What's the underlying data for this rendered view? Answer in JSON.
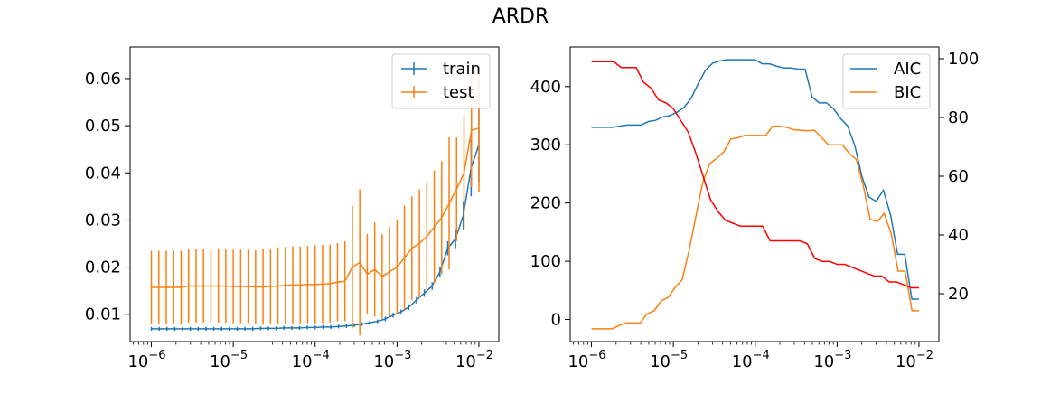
{
  "figure": {
    "title": "ARDR"
  },
  "colors": {
    "train": "#1f77b4",
    "test": "#ff7f0e",
    "aic": "#1f77b4",
    "bic": "#ff7f0e",
    "third": "#ff0000"
  },
  "chart_data": [
    {
      "type": "line",
      "subtype": "errorbar",
      "xscale": "log",
      "xlim": [
        5.5e-07,
        0.0175
      ],
      "ylim": [
        0.0042,
        0.0667
      ],
      "x_ticks": [
        {
          "value": 1e-06,
          "label": "−6"
        },
        {
          "value": 1e-05,
          "label": "−5"
        },
        {
          "value": 0.0001,
          "label": "−4"
        },
        {
          "value": 0.001,
          "label": "−3"
        },
        {
          "value": 0.01,
          "label": "−2"
        }
      ],
      "x_tick_base": "10",
      "y_ticks": [
        "0.01",
        "0.02",
        "0.03",
        "0.04",
        "0.05",
        "0.06"
      ],
      "legend": {
        "position": "upper right"
      },
      "series": [
        {
          "name": "train",
          "y": [
            0.0069,
            0.0069,
            0.0069,
            0.0069,
            0.0069,
            0.0069,
            0.0069,
            0.0069,
            0.0069,
            0.0069,
            0.0069,
            0.0069,
            0.0069,
            0.0069,
            0.007,
            0.007,
            0.007,
            0.0071,
            0.0071,
            0.0071,
            0.0072,
            0.0072,
            0.0073,
            0.0073,
            0.0074,
            0.0075,
            0.0077,
            0.0079,
            0.0082,
            0.0085,
            0.009,
            0.0098,
            0.0105,
            0.0115,
            0.013,
            0.0145,
            0.016,
            0.019,
            0.024,
            0.026,
            0.031,
            0.041,
            0.046
          ],
          "err": [
            0.0004,
            0.0004,
            0.0004,
            0.0004,
            0.0004,
            0.0004,
            0.0004,
            0.0004,
            0.0004,
            0.0004,
            0.0004,
            0.0004,
            0.0004,
            0.0004,
            0.0004,
            0.0004,
            0.0004,
            0.0004,
            0.0004,
            0.0004,
            0.0004,
            0.0004,
            0.0004,
            0.0004,
            0.0004,
            0.0004,
            0.0004,
            0.0004,
            0.0004,
            0.0004,
            0.0005,
            0.0005,
            0.0005,
            0.0006,
            0.0007,
            0.0008,
            0.0008,
            0.001,
            0.0015,
            0.002,
            0.003,
            0.006,
            0.008
          ]
        },
        {
          "name": "test",
          "y": [
            0.0157,
            0.0157,
            0.0157,
            0.0157,
            0.0157,
            0.016,
            0.016,
            0.016,
            0.016,
            0.016,
            0.016,
            0.0159,
            0.0159,
            0.0159,
            0.0158,
            0.0158,
            0.0159,
            0.016,
            0.0161,
            0.0162,
            0.0162,
            0.0163,
            0.0163,
            0.0164,
            0.0165,
            0.0168,
            0.017,
            0.02,
            0.021,
            0.0185,
            0.0195,
            0.018,
            0.019,
            0.02,
            0.022,
            0.024,
            0.025,
            0.0265,
            0.0285,
            0.0305,
            0.0335,
            0.0365,
            0.04,
            0.049,
            0.0495
          ],
          "err": [
            0.0078,
            0.0078,
            0.0078,
            0.0078,
            0.0078,
            0.0078,
            0.0078,
            0.0078,
            0.0078,
            0.0078,
            0.0078,
            0.0078,
            0.0078,
            0.0078,
            0.0078,
            0.008,
            0.008,
            0.0082,
            0.0082,
            0.0082,
            0.0082,
            0.0082,
            0.0083,
            0.0083,
            0.0083,
            0.0083,
            0.0085,
            0.013,
            0.0155,
            0.0085,
            0.01,
            0.009,
            0.0095,
            0.01,
            0.011,
            0.011,
            0.0115,
            0.0115,
            0.012,
            0.012,
            0.014,
            0.011,
            0.012,
            0.012,
            0.0135
          ]
        }
      ]
    },
    {
      "type": "line",
      "xscale": "log",
      "xlim": [
        5.5e-07,
        0.0175
      ],
      "ylim": [
        -38,
        468
      ],
      "y2lim": [
        3.7,
        104
      ],
      "x_ticks": [
        {
          "value": 1e-06,
          "label": "−6"
        },
        {
          "value": 1e-05,
          "label": "−5"
        },
        {
          "value": 0.0001,
          "label": "−4"
        },
        {
          "value": 0.001,
          "label": "−3"
        },
        {
          "value": 0.01,
          "label": "−2"
        }
      ],
      "x_tick_base": "10",
      "y_ticks": [
        "0",
        "100",
        "200",
        "300",
        "400"
      ],
      "y2_ticks": [
        "20",
        "40",
        "60",
        "80",
        "100"
      ],
      "legend": {
        "position": "upper right"
      },
      "series": [
        {
          "name": "AIC",
          "axis": "left",
          "y": [
            330,
            330,
            330,
            330,
            332,
            334,
            334,
            334,
            340,
            342,
            348,
            350,
            356,
            364,
            380,
            405,
            428,
            440,
            444,
            446,
            446,
            446,
            446,
            446,
            439,
            439,
            435,
            432,
            432,
            430,
            430,
            382,
            372,
            372,
            362,
            345,
            332,
            298,
            245,
            210,
            203,
            222,
            180,
            112,
            112,
            35,
            35
          ]
        },
        {
          "name": "BIC",
          "axis": "left",
          "y": [
            -16,
            -16,
            -16,
            -16,
            -10,
            -6,
            -6,
            -6,
            10,
            15,
            32,
            38,
            55,
            68,
            118,
            178,
            237,
            268,
            277,
            288,
            310,
            312,
            316,
            316,
            316,
            316,
            332,
            332,
            330,
            326,
            325,
            324,
            325,
            313,
            300,
            300,
            300,
            285,
            275,
            230,
            172,
            168,
            182,
            148,
            83,
            83,
            15,
            15
          ]
        },
        {
          "axis": "right",
          "y": [
            99,
            99,
            99,
            99,
            97,
            97,
            97,
            92,
            90,
            86,
            85,
            83,
            79,
            75,
            68,
            60,
            52,
            48,
            45,
            44,
            43,
            43,
            43,
            43,
            38,
            38,
            38,
            38,
            38,
            37,
            32,
            31,
            31,
            30,
            30,
            29,
            28,
            27,
            26,
            26,
            24,
            24,
            23,
            22,
            22
          ]
        }
      ]
    }
  ]
}
